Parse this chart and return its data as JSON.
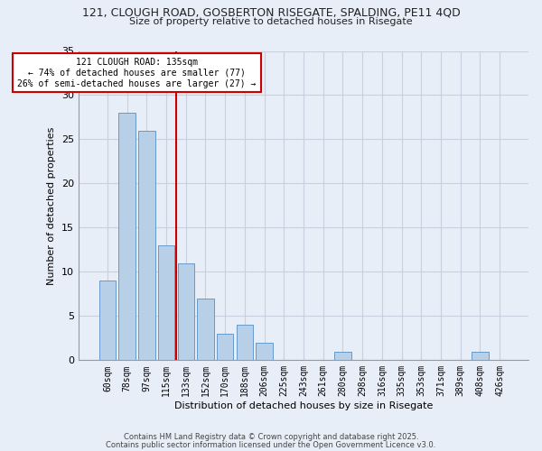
{
  "title_line1": "121, CLOUGH ROAD, GOSBERTON RISEGATE, SPALDING, PE11 4QD",
  "title_line2": "Size of property relative to detached houses in Risegate",
  "xlabel": "Distribution of detached houses by size in Risegate",
  "ylabel": "Number of detached properties",
  "categories": [
    "60sqm",
    "78sqm",
    "97sqm",
    "115sqm",
    "133sqm",
    "152sqm",
    "170sqm",
    "188sqm",
    "206sqm",
    "225sqm",
    "243sqm",
    "261sqm",
    "280sqm",
    "298sqm",
    "316sqm",
    "335sqm",
    "353sqm",
    "371sqm",
    "389sqm",
    "408sqm",
    "426sqm"
  ],
  "values": [
    9,
    28,
    26,
    13,
    11,
    7,
    3,
    4,
    2,
    0,
    0,
    0,
    1,
    0,
    0,
    0,
    0,
    0,
    0,
    1,
    0
  ],
  "bar_color": "#b8cfe8",
  "bar_edge_color": "#6699cc",
  "vline_index": 4,
  "vline_color": "#cc0000",
  "ylim": [
    0,
    35
  ],
  "yticks": [
    0,
    5,
    10,
    15,
    20,
    25,
    30,
    35
  ],
  "annotation_text": "121 CLOUGH ROAD: 135sqm\n← 74% of detached houses are smaller (77)\n26% of semi-detached houses are larger (27) →",
  "annotation_box_color": "#ffffff",
  "annotation_box_edge": "#cc0000",
  "footer_line1": "Contains HM Land Registry data © Crown copyright and database right 2025.",
  "footer_line2": "Contains public sector information licensed under the Open Government Licence v3.0.",
  "background_color": "#e8eef8",
  "grid_color": "#c8d0e0"
}
